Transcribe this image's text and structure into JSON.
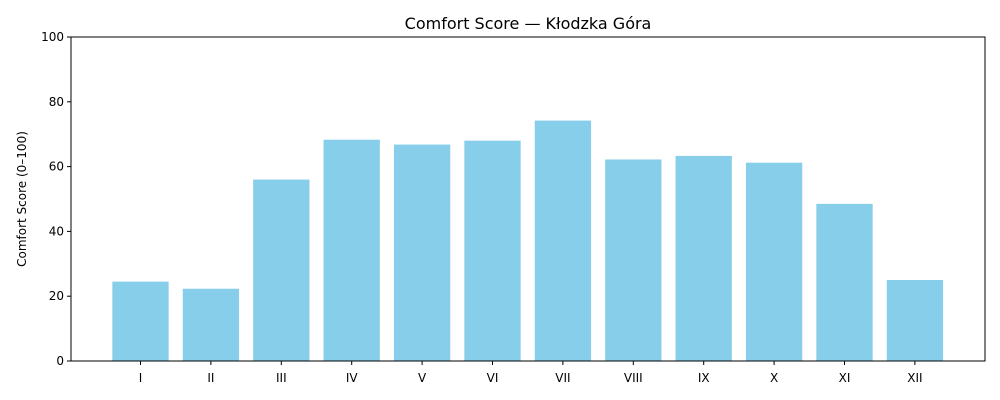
{
  "chart_data": {
    "type": "bar",
    "title": "Comfort Score — Kłodzka Góra",
    "xlabel": "",
    "ylabel": "Comfort Score (0–100)",
    "categories": [
      "I",
      "II",
      "III",
      "IV",
      "V",
      "VI",
      "VII",
      "VIII",
      "IX",
      "X",
      "XI",
      "XII"
    ],
    "values": [
      24.5,
      22.3,
      56.0,
      68.3,
      66.8,
      68.0,
      74.2,
      62.2,
      63.3,
      61.2,
      48.5,
      25.0
    ],
    "ylim": [
      0,
      100
    ],
    "yticks": [
      "0",
      "20",
      "40",
      "60",
      "80",
      "100"
    ],
    "bar_color": "#87ceeb",
    "grid": false,
    "legend": false
  }
}
